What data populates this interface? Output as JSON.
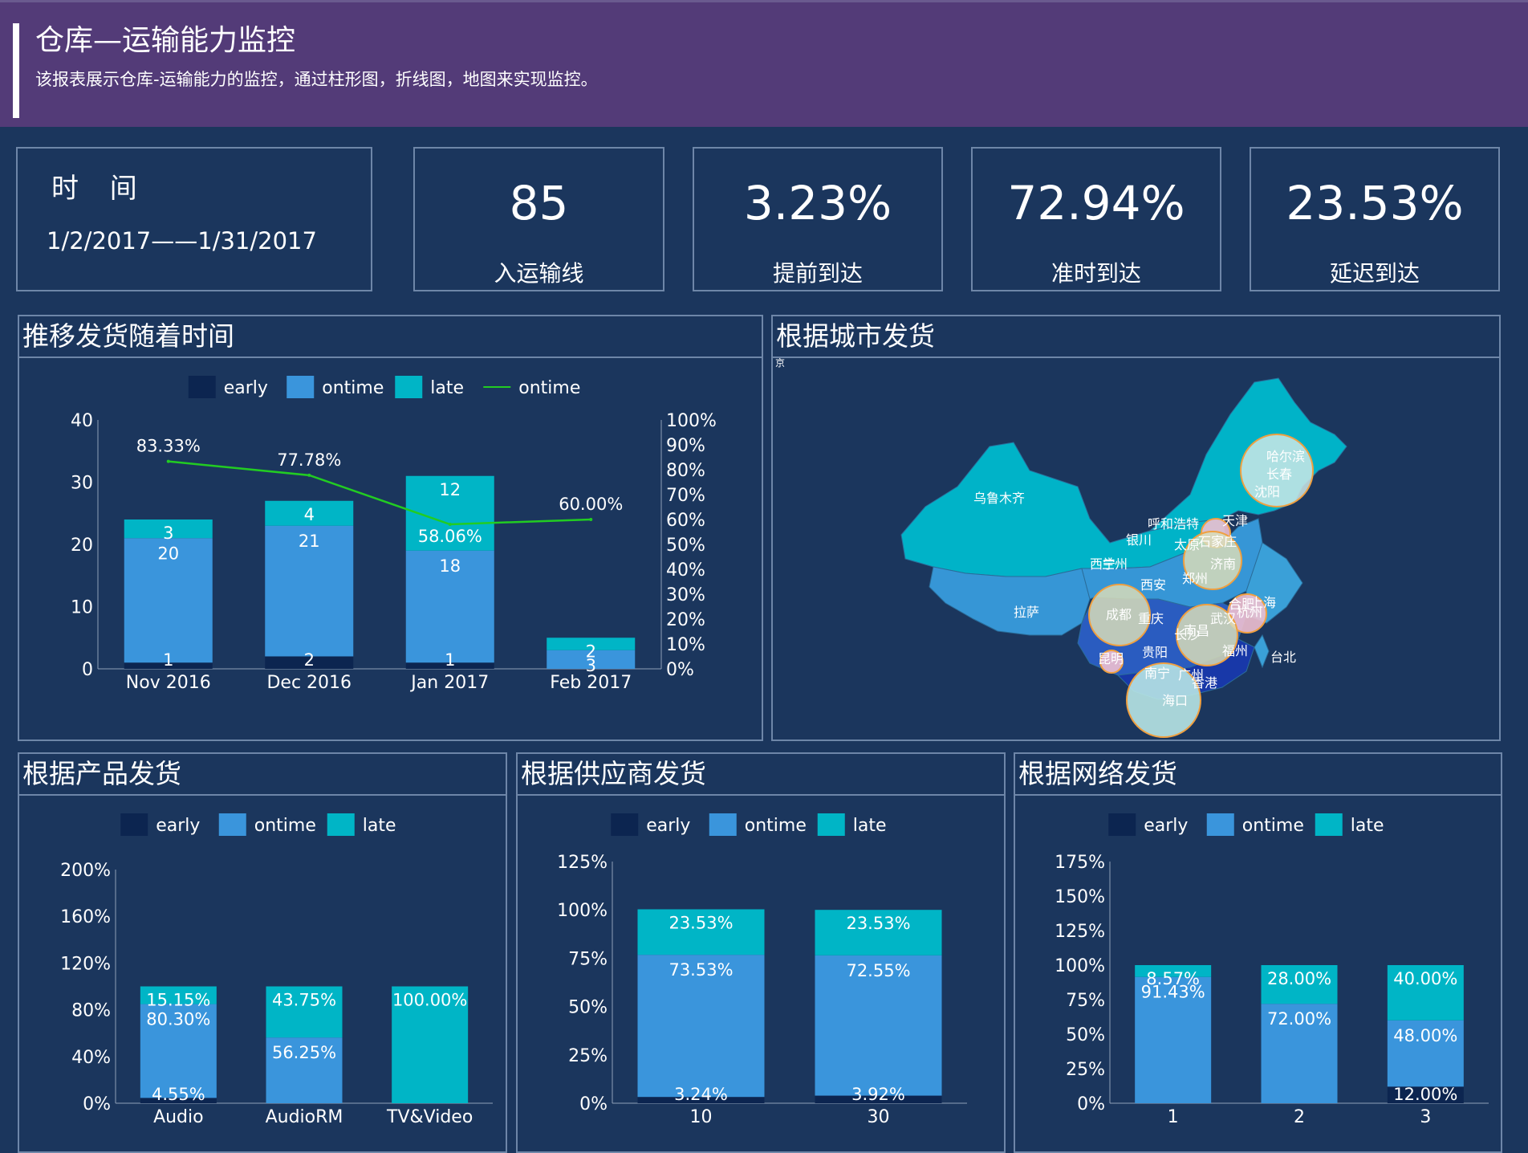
{
  "header": {
    "title": "仓库—运输能力监控",
    "subtitle": "该报表展示仓库-运输能力的监控，通过柱形图，折线图，地图来实现监控。"
  },
  "kpis": {
    "time_label": "时 间",
    "time_range": "1/2/2017——1/31/2017",
    "routes": {
      "value": "85",
      "label": "入运输线"
    },
    "early": {
      "value": "3.23%",
      "label": "提前到达"
    },
    "ontime": {
      "value": "72.94%",
      "label": "准时到达"
    },
    "late": {
      "value": "23.53%",
      "label": "延迟到达"
    }
  },
  "panels": {
    "trend_title": "推移发货随着时间",
    "map_title": "根据城市发货",
    "product_title": "根据产品发货",
    "supplier_title": "根据供应商发货",
    "network_title": "根据网络发货"
  },
  "colors": {
    "early": "#0c2550",
    "ontime": "#3a95dc",
    "late": "#00b5c6",
    "line": "#22cc22",
    "background": "#1b365d",
    "header": "#533b78"
  },
  "chart_data": [
    {
      "id": "trend",
      "type": "bar",
      "stacked": true,
      "legend": [
        "early",
        "ontime",
        "late",
        "ontime"
      ],
      "categories": [
        "Nov 2016",
        "Dec 2016",
        "Jan 2017",
        "Feb 2017"
      ],
      "series": [
        {
          "name": "early",
          "values": [
            1,
            2,
            1,
            0
          ],
          "labels": [
            "1",
            "2",
            "1",
            ""
          ]
        },
        {
          "name": "ontime",
          "values": [
            20,
            21,
            18,
            3
          ],
          "labels": [
            "20",
            "21",
            "18",
            "3"
          ]
        },
        {
          "name": "late",
          "values": [
            3,
            4,
            12,
            2
          ],
          "labels": [
            "3",
            "4",
            "12",
            "2"
          ]
        }
      ],
      "line": {
        "name": "ontime",
        "values": [
          83.33,
          77.78,
          58.06,
          60.0
        ],
        "labels": [
          "83.33%",
          "77.78%",
          "58.06%",
          "60.00%"
        ]
      },
      "ylim": [
        0,
        40
      ],
      "yticks": [
        "0",
        "10",
        "20",
        "30",
        "40"
      ],
      "y2lim": [
        0,
        100
      ],
      "y2ticks": [
        "0%",
        "10%",
        "20%",
        "30%",
        "40%",
        "50%",
        "60%",
        "70%",
        "80%",
        "90%",
        "100%"
      ]
    },
    {
      "id": "product",
      "type": "bar",
      "stacked": true,
      "legend": [
        "early",
        "ontime",
        "late"
      ],
      "categories": [
        "Audio",
        "AudioRM",
        "TV&Video"
      ],
      "series": [
        {
          "name": "early",
          "values": [
            4.55,
            0,
            0
          ],
          "labels": [
            "4.55%",
            "",
            ""
          ]
        },
        {
          "name": "ontime",
          "values": [
            80.3,
            56.25,
            0
          ],
          "labels": [
            "80.30%",
            "56.25%",
            ""
          ]
        },
        {
          "name": "late",
          "values": [
            15.15,
            43.75,
            100.0
          ],
          "labels": [
            "15.15%",
            "43.75%",
            "100.00%"
          ]
        }
      ],
      "ylim": [
        0,
        200
      ],
      "yticks": [
        "0%",
        "40%",
        "80%",
        "120%",
        "160%",
        "200%"
      ]
    },
    {
      "id": "supplier",
      "type": "bar",
      "stacked": true,
      "legend": [
        "early",
        "ontime",
        "late"
      ],
      "categories": [
        "10",
        "30"
      ],
      "series": [
        {
          "name": "early",
          "values": [
            3.24,
            3.92
          ],
          "labels": [
            "3.24%",
            "3.92%"
          ]
        },
        {
          "name": "ontime",
          "values": [
            73.53,
            72.55
          ],
          "labels": [
            "73.53%",
            "72.55%"
          ]
        },
        {
          "name": "late",
          "values": [
            23.53,
            23.53
          ],
          "labels": [
            "23.53%",
            "23.53%"
          ]
        }
      ],
      "ylim": [
        0,
        125
      ],
      "yticks": [
        "0%",
        "25%",
        "50%",
        "75%",
        "100%",
        "125%"
      ]
    },
    {
      "id": "network",
      "type": "bar",
      "stacked": true,
      "legend": [
        "early",
        "ontime",
        "late"
      ],
      "categories": [
        "1",
        "2",
        "3"
      ],
      "series": [
        {
          "name": "early",
          "values": [
            0,
            0,
            12.0
          ],
          "labels": [
            "",
            "",
            "12.00%"
          ]
        },
        {
          "name": "ontime",
          "values": [
            91.43,
            72.0,
            48.0
          ],
          "labels": [
            "91.43%",
            "72.00%",
            "48.00%"
          ]
        },
        {
          "name": "late",
          "values": [
            8.57,
            28.0,
            40.0
          ],
          "labels": [
            "8.57%",
            "28.00%",
            "40.00%"
          ]
        }
      ],
      "ylim": [
        0,
        175
      ],
      "yticks": [
        "0%",
        "25%",
        "50%",
        "75%",
        "100%",
        "125%",
        "150%",
        "175%"
      ]
    }
  ],
  "map": {
    "corner_label": "京",
    "cities": [
      "乌鲁木齐",
      "哈尔滨",
      "长春",
      "沈阳",
      "呼和浩特",
      "天津",
      "银川",
      "太原",
      "石家庄",
      "济南",
      "西宁",
      "兰州",
      "西安",
      "郑州",
      "成都",
      "重庆",
      "合肥",
      "上海",
      "杭州",
      "武汉",
      "南昌",
      "长沙",
      "拉萨",
      "贵阳",
      "福州",
      "昆明",
      "台北",
      "南宁",
      "广州",
      "香港",
      "海口"
    ]
  }
}
